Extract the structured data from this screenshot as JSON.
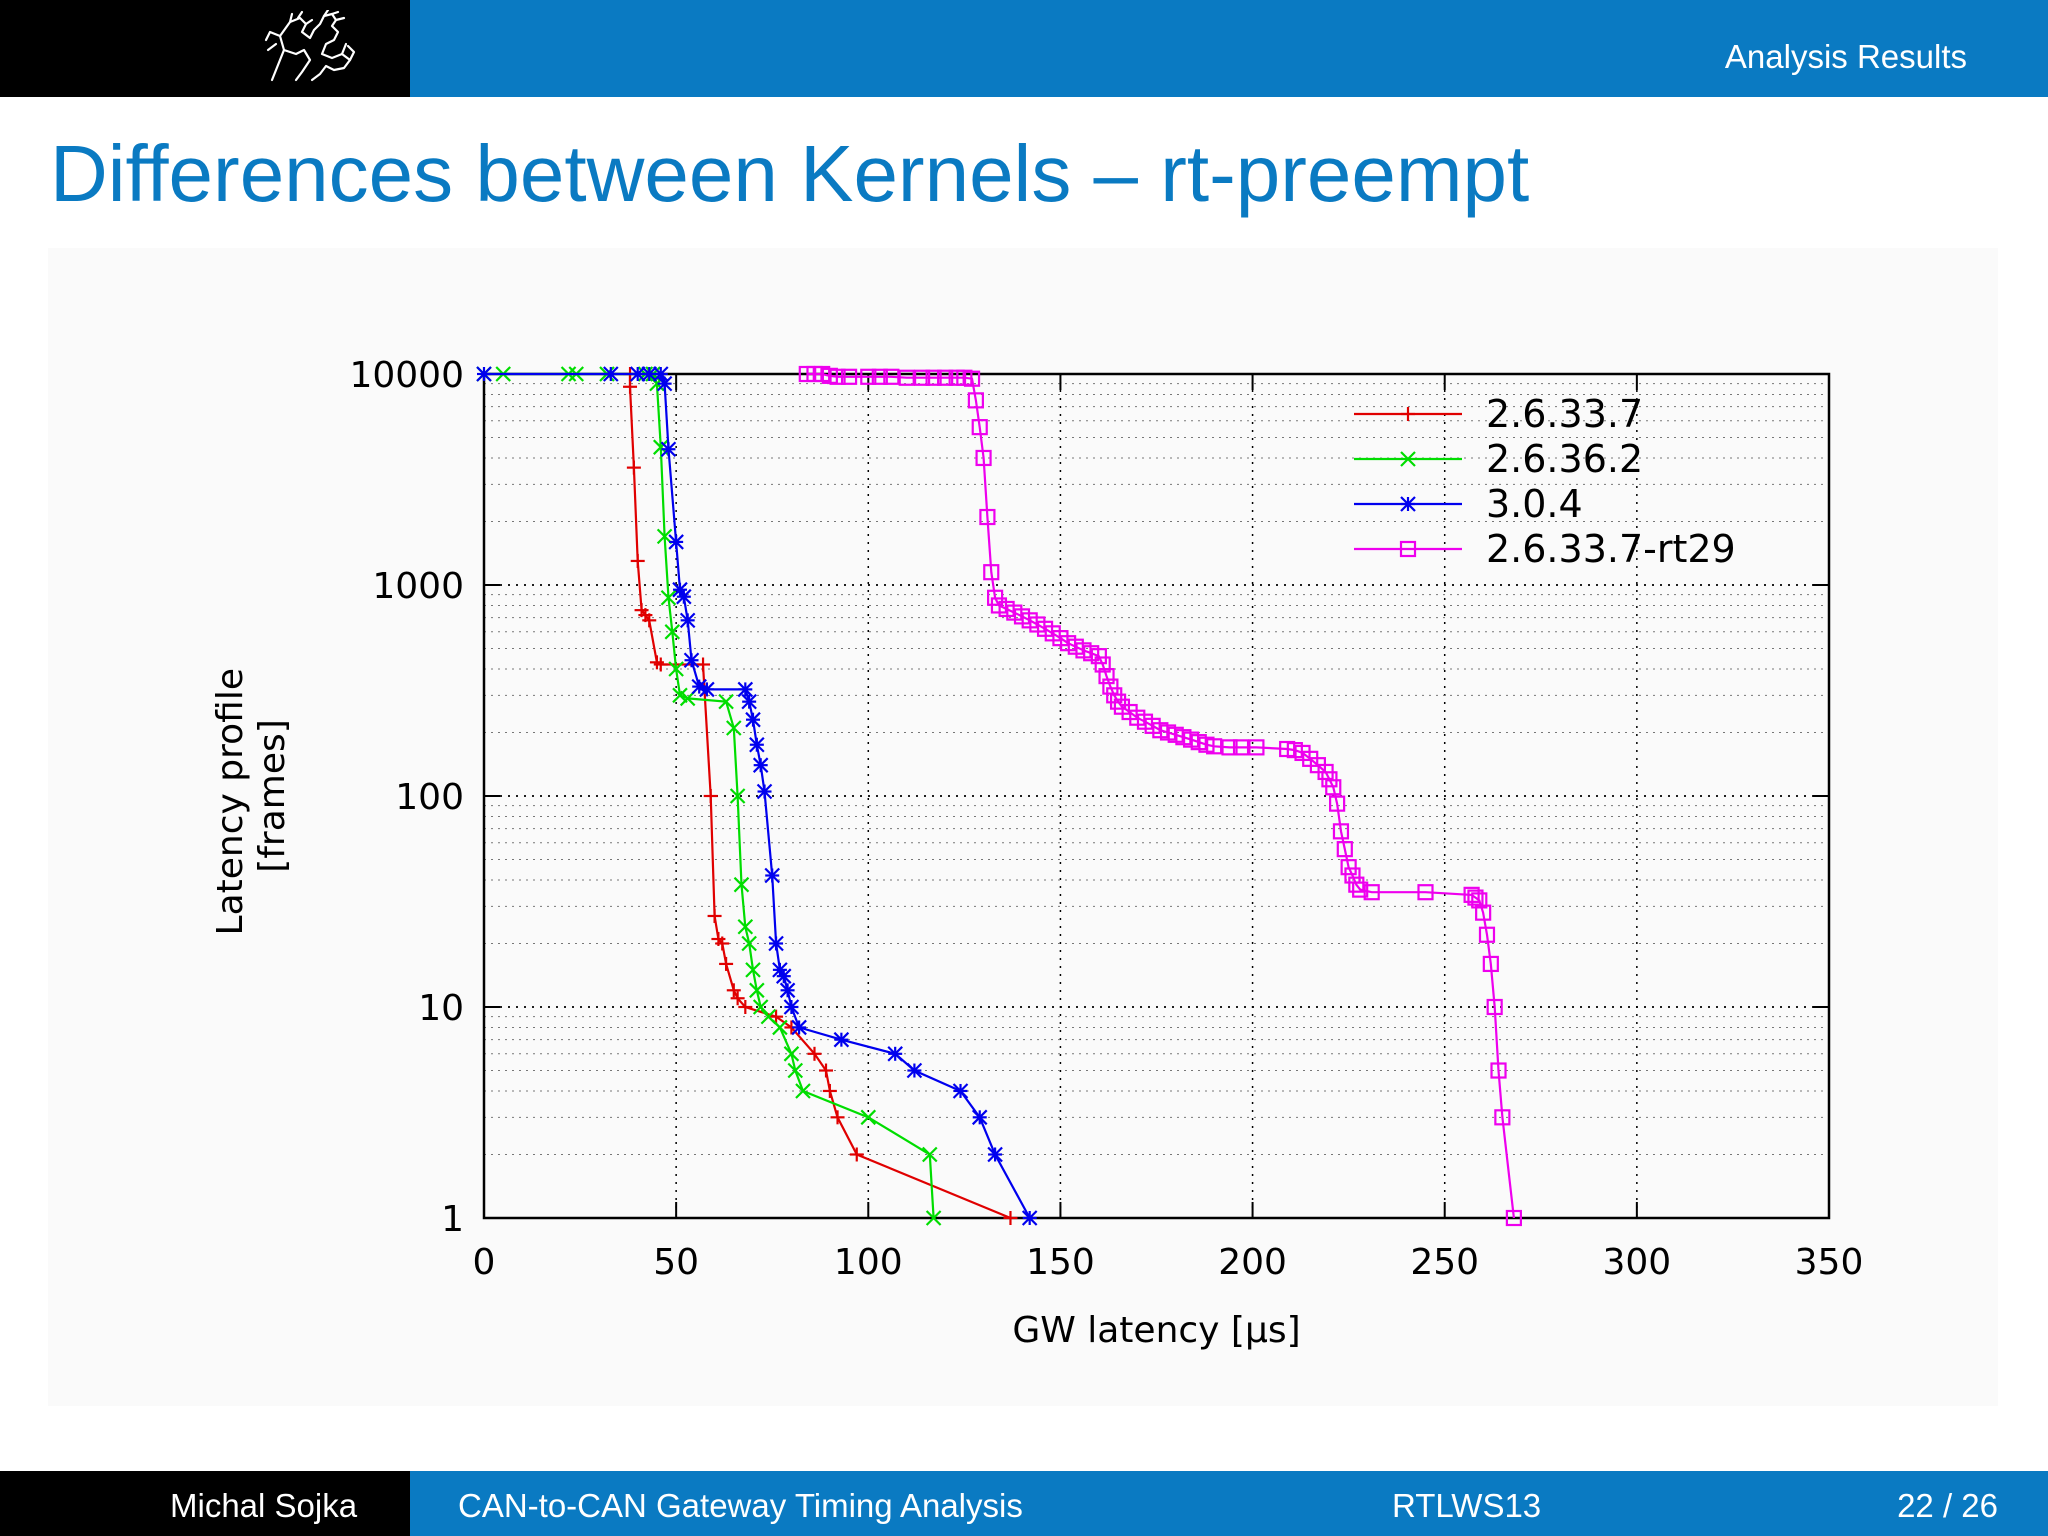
{
  "header": {
    "section_title": "Analysis Results",
    "logo_icon": "university-lion-logo-icon"
  },
  "slide": {
    "title": "Differences between Kernels – rt-preempt"
  },
  "footer": {
    "author": "Michal Sojka",
    "talk": "CAN-to-CAN Gateway Timing Analysis",
    "conference": "RTLWS13",
    "page": "22 / 26"
  },
  "colors": {
    "blue_bar": "#0a7ac2",
    "black_bar": "#000000",
    "title": "#0a7ac2"
  },
  "chart_data": {
    "type": "line",
    "xlabel": "GW latency [µs]",
    "ylabel_lines": [
      "Latency profile",
      "[frames]"
    ],
    "xlim": [
      0,
      350
    ],
    "ylim": [
      1,
      10000
    ],
    "y_scale": "log",
    "grid": true,
    "legend_position": "top-right",
    "x_ticks": [
      "0",
      "50",
      "100",
      "150",
      "200",
      "250",
      "300",
      "350"
    ],
    "y_ticks": [
      "1",
      "10",
      "100",
      "1000",
      "10000"
    ],
    "series": [
      {
        "name": "2.6.33.7",
        "color": "#e00000",
        "marker": "plus",
        "points": [
          [
            38,
            10000
          ],
          [
            38,
            8700
          ],
          [
            39,
            3600
          ],
          [
            40,
            1300
          ],
          [
            41,
            760
          ],
          [
            42,
            720
          ],
          [
            43,
            680
          ],
          [
            45,
            430
          ],
          [
            46,
            420
          ],
          [
            57,
            420
          ],
          [
            59,
            100
          ],
          [
            60,
            27
          ],
          [
            61,
            21
          ],
          [
            62,
            20
          ],
          [
            63,
            16
          ],
          [
            65,
            12
          ],
          [
            66,
            11
          ],
          [
            68,
            10
          ],
          [
            76,
            9
          ],
          [
            80,
            8
          ],
          [
            86,
            6
          ],
          [
            89,
            5
          ],
          [
            90,
            4
          ],
          [
            92,
            3
          ],
          [
            97,
            2
          ],
          [
            137,
            1
          ]
        ]
      },
      {
        "name": "2.6.36.2",
        "color": "#00dd00",
        "marker": "x",
        "points": [
          [
            0,
            10000
          ],
          [
            5,
            10000
          ],
          [
            22,
            10000
          ],
          [
            24,
            10000
          ],
          [
            32,
            10000
          ],
          [
            42,
            10000
          ],
          [
            44,
            10000
          ],
          [
            45,
            9000
          ],
          [
            46,
            4500
          ],
          [
            47,
            1700
          ],
          [
            48,
            870
          ],
          [
            49,
            600
          ],
          [
            50,
            400
          ],
          [
            51,
            300
          ],
          [
            53,
            290
          ],
          [
            63,
            280
          ],
          [
            65,
            210
          ],
          [
            66,
            100
          ],
          [
            67,
            38
          ],
          [
            68,
            24
          ],
          [
            69,
            20
          ],
          [
            70,
            15
          ],
          [
            71,
            12
          ],
          [
            72,
            10
          ],
          [
            74,
            9
          ],
          [
            77,
            8
          ],
          [
            80,
            6
          ],
          [
            81,
            5
          ],
          [
            83,
            4
          ],
          [
            100,
            3
          ],
          [
            116,
            2
          ],
          [
            117,
            1
          ]
        ]
      },
      {
        "name": "3.0.4",
        "color": "#0000ee",
        "marker": "star",
        "points": [
          [
            0,
            10000
          ],
          [
            33,
            10000
          ],
          [
            40,
            10000
          ],
          [
            43,
            10000
          ],
          [
            46,
            10000
          ],
          [
            47,
            9000
          ],
          [
            48,
            4400
          ],
          [
            50,
            1600
          ],
          [
            51,
            950
          ],
          [
            52,
            880
          ],
          [
            53,
            680
          ],
          [
            54,
            440
          ],
          [
            56,
            330
          ],
          [
            58,
            320
          ],
          [
            68,
            320
          ],
          [
            69,
            280
          ],
          [
            70,
            230
          ],
          [
            71,
            175
          ],
          [
            72,
            140
          ],
          [
            73,
            105
          ],
          [
            75,
            42
          ],
          [
            76,
            20
          ],
          [
            77,
            15
          ],
          [
            78,
            14
          ],
          [
            79,
            12
          ],
          [
            80,
            10
          ],
          [
            82,
            8
          ],
          [
            93,
            7
          ],
          [
            107,
            6
          ],
          [
            112,
            5
          ],
          [
            124,
            4
          ],
          [
            129,
            3
          ],
          [
            133,
            2
          ],
          [
            142,
            1
          ]
        ]
      },
      {
        "name": "2.6.33.7-rt29",
        "color": "#ee00ee",
        "marker": "square",
        "points": [
          [
            84,
            10000
          ],
          [
            86,
            10000
          ],
          [
            88,
            10000
          ],
          [
            90,
            9800
          ],
          [
            92,
            9700
          ],
          [
            95,
            9700
          ],
          [
            100,
            9700
          ],
          [
            103,
            9700
          ],
          [
            106,
            9700
          ],
          [
            110,
            9600
          ],
          [
            114,
            9600
          ],
          [
            117,
            9600
          ],
          [
            120,
            9600
          ],
          [
            123,
            9600
          ],
          [
            125,
            9600
          ],
          [
            127,
            9500
          ],
          [
            128,
            7500
          ],
          [
            129,
            5600
          ],
          [
            130,
            4000
          ],
          [
            131,
            2100
          ],
          [
            132,
            1150
          ],
          [
            133,
            870
          ],
          [
            134,
            800
          ],
          [
            136,
            770
          ],
          [
            138,
            740
          ],
          [
            140,
            710
          ],
          [
            142,
            680
          ],
          [
            144,
            650
          ],
          [
            146,
            620
          ],
          [
            148,
            590
          ],
          [
            150,
            560
          ],
          [
            152,
            530
          ],
          [
            154,
            510
          ],
          [
            156,
            490
          ],
          [
            158,
            475
          ],
          [
            160,
            460
          ],
          [
            161,
            420
          ],
          [
            162,
            370
          ],
          [
            163,
            330
          ],
          [
            164,
            300
          ],
          [
            165,
            280
          ],
          [
            166,
            265
          ],
          [
            168,
            250
          ],
          [
            170,
            235
          ],
          [
            172,
            225
          ],
          [
            174,
            215
          ],
          [
            176,
            205
          ],
          [
            178,
            200
          ],
          [
            180,
            195
          ],
          [
            182,
            190
          ],
          [
            184,
            185
          ],
          [
            186,
            180
          ],
          [
            188,
            175
          ],
          [
            190,
            172
          ],
          [
            194,
            170
          ],
          [
            197,
            170
          ],
          [
            201,
            170
          ],
          [
            209,
            167
          ],
          [
            211,
            165
          ],
          [
            213,
            160
          ],
          [
            215,
            150
          ],
          [
            217,
            140
          ],
          [
            219,
            130
          ],
          [
            220,
            120
          ],
          [
            221,
            110
          ],
          [
            222,
            92
          ],
          [
            223,
            68
          ],
          [
            224,
            56
          ],
          [
            225,
            46
          ],
          [
            226,
            42
          ],
          [
            227,
            38
          ],
          [
            228,
            36
          ],
          [
            231,
            35
          ],
          [
            245,
            35
          ],
          [
            257,
            34
          ],
          [
            258,
            33
          ],
          [
            259,
            32
          ],
          [
            260,
            28
          ],
          [
            261,
            22
          ],
          [
            262,
            16
          ],
          [
            263,
            10
          ],
          [
            264,
            5
          ],
          [
            265,
            3
          ],
          [
            268,
            1
          ]
        ]
      }
    ]
  }
}
